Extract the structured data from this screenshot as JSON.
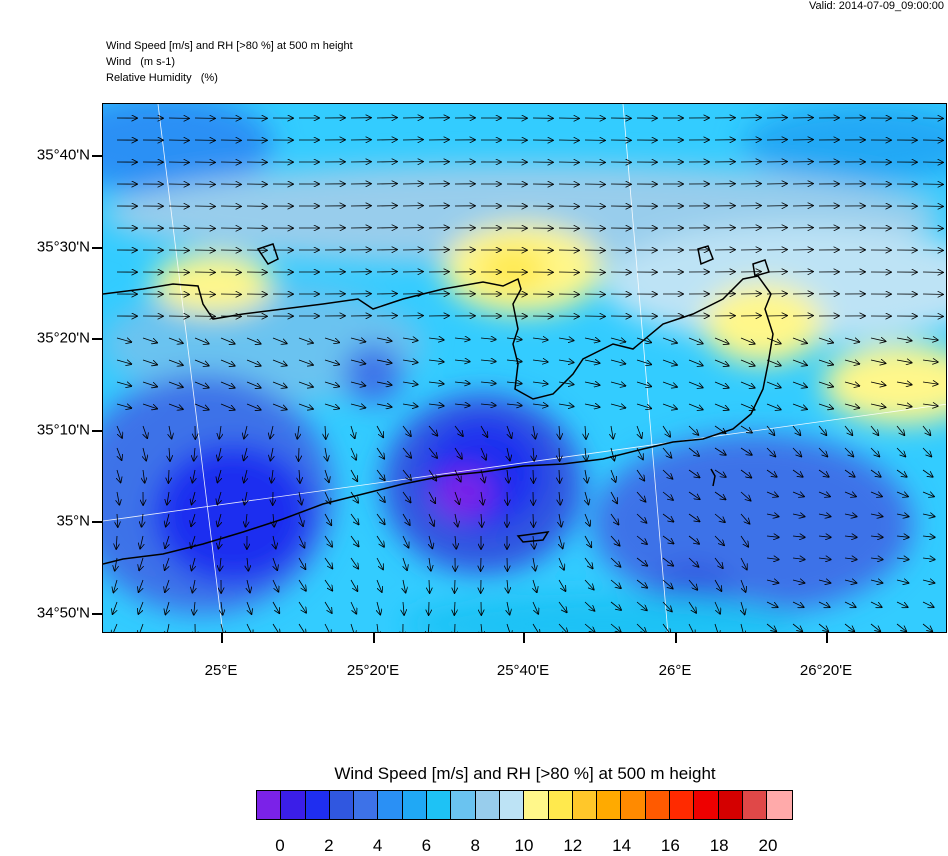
{
  "valid_time": "Valid: 2014-07-09_09:00:00",
  "header": {
    "line1": "Wind Speed [m/s] and RH [>80 %] at 500 m height",
    "line2": "Wind   (m s-1)",
    "line3": "Relative Humidity   (%)"
  },
  "map": {
    "lat_labels": [
      "35°40'N",
      "35°30'N",
      "35°20'N",
      "35°10'N",
      "35°N",
      "34°50'N"
    ],
    "lon_labels": [
      "25°E",
      "25°20'E",
      "25°40'E",
      "26°E",
      "26°20'E"
    ],
    "ocean_color": "#33ccff",
    "coast_color": "#000000"
  },
  "colorbar": {
    "title": "Wind Speed [m/s] and RH [>80 %] at 500 m height",
    "labels": [
      "0",
      "2",
      "4",
      "6",
      "8",
      "10",
      "12",
      "14",
      "16",
      "18",
      "20"
    ],
    "colors": [
      "#7b22e8",
      "#3b1ee8",
      "#1f2ef0",
      "#3057e0",
      "#3d72e8",
      "#2a90f5",
      "#20a8f5",
      "#1ec2f5",
      "#6ac3f0",
      "#98cdec",
      "#bde3f5",
      "#fff78a",
      "#ffe94d",
      "#ffc72a",
      "#ffaa00",
      "#ff8a00",
      "#ff5a00",
      "#ff2a00",
      "#ee0000",
      "#d40000",
      "#e04848",
      "#ffaaaa"
    ]
  }
}
